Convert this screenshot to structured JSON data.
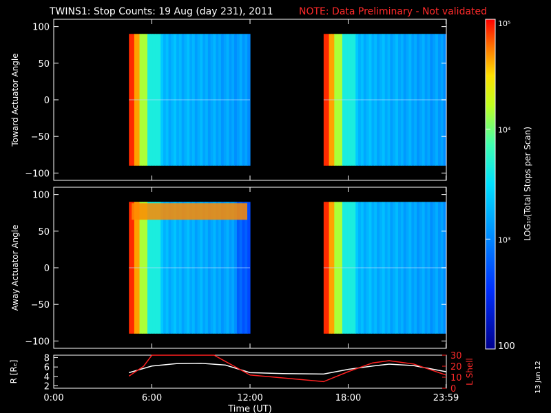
{
  "header": {
    "title": "TWINS1: Stop Counts: 19 Aug (day 231), 2011",
    "note": "NOTE: Data Preliminary - Not validated"
  },
  "stamp": "13 Jun 12",
  "colors": {
    "note": "#ff2a2a",
    "lshell": "#ff2020",
    "radius": "#ffffff"
  },
  "chart_data": [
    {
      "type": "heatmap",
      "ylabel": "Toward Actuator Angle",
      "ylim": [
        -110,
        110
      ],
      "yticks": [
        100,
        50,
        0,
        -50,
        -100
      ],
      "xlim": [
        0,
        24
      ],
      "data_blocks_hours": [
        [
          4.6,
          12.0
        ],
        [
          16.5,
          23.98
        ]
      ],
      "angle_range": [
        -90,
        90
      ]
    },
    {
      "type": "heatmap",
      "ylabel": "Away Actuator Angle",
      "ylim": [
        -110,
        110
      ],
      "yticks": [
        100,
        50,
        0,
        -50,
        -100
      ],
      "xlim": [
        0,
        24
      ],
      "data_blocks_hours": [
        [
          4.6,
          12.0
        ],
        [
          16.5,
          23.98
        ]
      ],
      "angle_range": [
        -90,
        90
      ]
    },
    {
      "type": "line",
      "ylabel": "R [Rₑ]",
      "ylabel_right": "L Shell",
      "xlabel": "Time (UT)",
      "xticks": [
        "0:00",
        "6:00",
        "12:00",
        "18:00",
        "23:59"
      ],
      "xtick_hours": [
        0,
        6,
        12,
        18,
        23.98
      ],
      "ylim": [
        1.5,
        8.5
      ],
      "yticks": [
        2,
        4,
        6,
        8
      ],
      "ylim_right": [
        0,
        30
      ],
      "yticks_right": [
        0,
        10,
        20,
        30
      ],
      "series": [
        {
          "key": "radius",
          "axis": "left",
          "x": [
            4.6,
            6,
            7.5,
            9,
            10.5,
            12,
            14,
            16.5,
            18,
            19.5,
            20.5,
            22,
            23.98
          ],
          "y": [
            4.8,
            6.2,
            6.7,
            6.8,
            6.4,
            4.8,
            4.6,
            4.5,
            5.5,
            6.2,
            6.6,
            6.3,
            5.0
          ]
        },
        {
          "key": "lshell",
          "axis": "right",
          "x": [
            4.6,
            5.5,
            6.0,
            9.8,
            12.0,
            16.5,
            18.0,
            19.5,
            20.5,
            22.0,
            23.98
          ],
          "y": [
            11,
            20,
            30,
            30,
            12,
            6,
            15,
            23,
            25,
            22,
            12
          ]
        }
      ]
    }
  ],
  "colorbar": {
    "label": "LOG₁₀(Total Stops per Scan)",
    "ticks": [
      "10⁵",
      "10⁴",
      "10³",
      "100"
    ],
    "tick_log_values": [
      5,
      4,
      3,
      2
    ],
    "range_log": [
      2,
      5
    ]
  }
}
